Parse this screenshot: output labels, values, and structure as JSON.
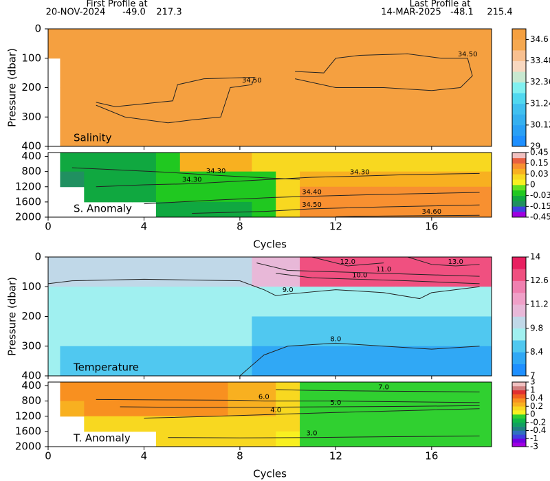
{
  "header": {
    "first": {
      "label": "First Profile at",
      "date": "20-NOV-2024",
      "lat": "-49.0",
      "lon": "217.3"
    },
    "last": {
      "label": "Last Profile at",
      "date": "14-MAR-2025",
      "lat": "-48.1",
      "lon": "215.4"
    }
  },
  "chart_data": [
    {
      "type": "heatmap",
      "title": "Salinity",
      "ylabel": "Pressure (dbar)",
      "y_inverted": true,
      "xlim": [
        0,
        18.5
      ],
      "xticks": [
        0,
        4,
        8,
        12,
        16
      ],
      "ylim": [
        0,
        400
      ],
      "yticks": [
        0,
        100,
        200,
        300,
        400
      ],
      "x_edges": [
        0,
        0.5,
        1.5,
        2.5,
        3.5,
        4.5,
        5.5,
        6.5,
        7.5,
        8.5,
        9.5,
        10.5,
        11.5,
        12.5,
        13.5,
        14.5,
        15.5,
        16.5,
        17.5,
        18.5
      ],
      "y_edges": [
        0,
        100,
        200,
        300,
        400
      ],
      "values": [
        [
          34.7,
          34.7,
          34.7,
          34.7,
          34.7,
          34.7,
          34.7,
          34.7,
          34.7,
          34.7,
          34.7,
          34.7,
          34.7,
          34.7,
          34.7,
          34.7,
          34.7,
          34.7,
          34.7
        ],
        [
          null,
          34.7,
          34.7,
          34.7,
          34.7,
          34.7,
          34.7,
          34.7,
          34.7,
          34.7,
          34.7,
          34.7,
          34.7,
          34.7,
          34.7,
          34.7,
          34.7,
          34.7,
          34.7
        ],
        [
          null,
          34.7,
          34.7,
          34.7,
          34.7,
          34.7,
          34.7,
          34.7,
          34.7,
          34.7,
          34.7,
          34.7,
          34.7,
          34.7,
          34.7,
          34.7,
          34.7,
          34.7,
          34.7
        ],
        [
          null,
          34.7,
          34.7,
          34.7,
          34.7,
          34.7,
          34.7,
          34.7,
          34.7,
          34.7,
          34.7,
          34.7,
          34.7,
          34.7,
          34.7,
          34.7,
          34.7,
          34.7,
          34.7
        ]
      ],
      "colorbar": {
        "edges": [
          29,
          29.56,
          30.12,
          30.68,
          31.24,
          31.8,
          32.36,
          32.92,
          33.48,
          34.04,
          34.6,
          35.16
        ],
        "colors": [
          "#1e8fff",
          "#2aa0f5",
          "#35b0f0",
          "#40c0f0",
          "#50d8f0",
          "#80f0f0",
          "#c8e8d0",
          "#f8d8c0",
          "#f8c090",
          "#f5a850",
          "#f5a040"
        ],
        "ticks": [
          29,
          30.12,
          31.24,
          32.36,
          33.48,
          34.6
        ]
      },
      "contours": [
        {
          "label": "34.50",
          "x": [
            2.0,
            2.8,
            4.0,
            5.2,
            5.4,
            6.5,
            8.6,
            8.5,
            7.6,
            7.2,
            6.0,
            5.0,
            3.2,
            2.0
          ],
          "y": [
            250,
            265,
            255,
            245,
            190,
            170,
            165,
            190,
            200,
            300,
            310,
            320,
            300,
            260
          ]
        },
        {
          "label": "34.50",
          "x": [
            10.3,
            11.5,
            12.0,
            13.0,
            15.0,
            16.4,
            17.5,
            17.7,
            17.2,
            16.0,
            14.0,
            12.0,
            10.3
          ],
          "y": [
            145,
            150,
            100,
            90,
            85,
            100,
            100,
            160,
            200,
            210,
            200,
            200,
            170
          ]
        }
      ]
    },
    {
      "type": "heatmap",
      "title": "S. Anomaly",
      "xlabel": "Cycles",
      "y_inverted": true,
      "xlim": [
        0,
        18.5
      ],
      "xticks": [
        0,
        4,
        8,
        12,
        16
      ],
      "ylim": [
        300,
        2000
      ],
      "yticks": [
        400,
        800,
        1200,
        1600,
        2000
      ],
      "x_edges": [
        0,
        0.5,
        1.5,
        2.5,
        3.5,
        4.5,
        5.5,
        6.5,
        7.5,
        8.5,
        9.5,
        10.5,
        11.5,
        12.5,
        13.5,
        14.5,
        15.5,
        16.5,
        17.5,
        18.5
      ],
      "y_edges": [
        300,
        800,
        1200,
        1600,
        2000
      ],
      "values": [
        [
          null,
          -0.05,
          -0.05,
          -0.05,
          -0.05,
          -0.02,
          0.05,
          0.05,
          0.05,
          0.02,
          0.02,
          0.02,
          0.02,
          0.02,
          0.02,
          0.02,
          0.02,
          0.02,
          0.02
        ],
        [
          null,
          -0.1,
          -0.05,
          -0.05,
          -0.05,
          -0.02,
          -0.02,
          -0.02,
          -0.02,
          -0.02,
          0.02,
          0.05,
          0.05,
          0.05,
          0.05,
          0.05,
          0.05,
          0.05,
          0.05
        ],
        [
          null,
          null,
          -0.05,
          -0.05,
          -0.05,
          -0.02,
          -0.02,
          -0.02,
          -0.02,
          -0.02,
          0.02,
          0.1,
          0.1,
          0.1,
          0.1,
          0.1,
          0.1,
          0.1,
          0.1
        ],
        [
          null,
          null,
          null,
          null,
          null,
          -0.05,
          -0.05,
          -0.05,
          -0.05,
          -0.02,
          0.02,
          0.1,
          0.1,
          0.1,
          0.1,
          0.1,
          0.1,
          0.1,
          0.1
        ]
      ],
      "colorbar": {
        "edges": [
          -0.45,
          -0.3,
          -0.15,
          -0.09,
          -0.03,
          -0.015,
          0,
          0.015,
          0.03,
          0.09,
          0.15,
          0.3,
          0.45
        ],
        "colors": [
          "#a000e0",
          "#4040e0",
          "#209060",
          "#10a840",
          "#20c820",
          "#60e020",
          "#f8f020",
          "#f8d820",
          "#f8b020",
          "#f89030",
          "#e86040",
          "#f0c0c0"
        ],
        "ticks": [
          -0.45,
          -0.15,
          -0.03,
          0,
          0.03,
          0.15,
          0.45
        ]
      },
      "contours": [
        {
          "label": "34.30",
          "x": [
            1,
            3,
            5,
            7,
            9.5,
            10.5
          ],
          "y": [
            700,
            760,
            820,
            900,
            980,
            1000
          ]
        },
        {
          "label": "34.30",
          "x": [
            2,
            4,
            6,
            8,
            9.5
          ],
          "y": [
            1200,
            1150,
            1120,
            1050,
            1000
          ]
        },
        {
          "label": "34.30",
          "x": [
            9.5,
            11,
            13,
            15,
            18
          ],
          "y": [
            1000,
            950,
            920,
            880,
            850
          ]
        },
        {
          "label": "34.40",
          "x": [
            4,
            7,
            9.5,
            11,
            14,
            18
          ],
          "y": [
            1650,
            1550,
            1480,
            1450,
            1400,
            1350
          ]
        },
        {
          "label": "34.50",
          "x": [
            6,
            9,
            11,
            14,
            18
          ],
          "y": [
            1900,
            1850,
            1780,
            1730,
            1680
          ]
        },
        {
          "label": "34.60",
          "x": [
            12,
            14,
            16,
            18
          ],
          "y": [
            1990,
            1970,
            1960,
            1950
          ]
        }
      ]
    },
    {
      "type": "heatmap",
      "title": "Temperature",
      "ylabel": "Pressure (dbar)",
      "y_inverted": true,
      "xlim": [
        0,
        18.5
      ],
      "xticks": [
        0,
        4,
        8,
        12,
        16
      ],
      "ylim": [
        0,
        400
      ],
      "yticks": [
        0,
        100,
        200,
        300,
        400
      ],
      "x_edges": [
        0,
        0.5,
        1.5,
        2.5,
        3.5,
        4.5,
        5.5,
        6.5,
        7.5,
        8.5,
        9.5,
        10.5,
        11.5,
        12.5,
        13.5,
        14.5,
        15.5,
        16.5,
        17.5,
        18.5
      ],
      "y_edges": [
        0,
        100,
        200,
        300,
        400
      ],
      "values": [
        [
          9.9,
          9.9,
          9.9,
          9.9,
          9.9,
          9.9,
          9.9,
          9.9,
          9.9,
          10.8,
          10.8,
          12.7,
          12.7,
          12.7,
          12.7,
          12.7,
          12.7,
          12.7,
          12.7
        ],
        [
          9.5,
          9.5,
          9.5,
          9.5,
          9.5,
          9.5,
          9.5,
          9.5,
          9.5,
          9.5,
          9.5,
          9.5,
          9.5,
          9.5,
          9.5,
          9.5,
          9.5,
          9.5,
          9.5
        ],
        [
          9.5,
          9.5,
          9.5,
          9.5,
          9.5,
          9.5,
          9.5,
          9.5,
          9.5,
          8.7,
          8.7,
          8.7,
          8.7,
          8.7,
          8.7,
          8.7,
          8.7,
          8.7,
          8.7
        ],
        [
          9.5,
          8.7,
          8.7,
          8.7,
          8.7,
          8.7,
          8.7,
          8.7,
          8.7,
          8.2,
          8.2,
          8.2,
          8.2,
          8.2,
          8.2,
          8.2,
          8.2,
          8.2,
          8.2
        ]
      ],
      "colorbar": {
        "edges": [
          7,
          7.7,
          8.4,
          9.1,
          9.8,
          10.5,
          11.2,
          11.9,
          12.6,
          13.3,
          14
        ],
        "colors": [
          "#1e8fff",
          "#30a8f5",
          "#50c8f0",
          "#a0f0f0",
          "#c0d8e8",
          "#e8b8d8",
          "#f0a0c8",
          "#f080b0",
          "#f05080",
          "#e82060"
        ],
        "ticks": [
          7,
          8.4,
          9.8,
          11.2,
          12.6,
          14
        ]
      },
      "contours": [
        {
          "label": "9.0",
          "x": [
            0,
            1,
            4,
            8,
            9,
            9.5,
            10,
            12,
            14,
            15.5,
            16,
            18
          ],
          "y": [
            90,
            80,
            75,
            80,
            110,
            130,
            125,
            110,
            120,
            140,
            120,
            100
          ]
        },
        {
          "label": "8.0",
          "x": [
            8,
            9,
            10,
            12,
            14,
            16,
            18
          ],
          "y": [
            400,
            330,
            300,
            290,
            300,
            310,
            300
          ]
        },
        {
          "label": "10.0",
          "x": [
            9.5,
            11,
            13,
            15,
            18
          ],
          "y": [
            55,
            70,
            75,
            80,
            90
          ]
        },
        {
          "label": "11.0",
          "x": [
            8.7,
            10,
            12,
            14,
            16,
            18
          ],
          "y": [
            20,
            45,
            50,
            55,
            60,
            65
          ]
        },
        {
          "label": "12.0",
          "x": [
            11,
            12.5,
            14
          ],
          "y": [
            0,
            30,
            20
          ]
        },
        {
          "label": "13.0",
          "x": [
            15,
            16,
            17,
            18
          ],
          "y": [
            0,
            25,
            30,
            25
          ]
        }
      ]
    },
    {
      "type": "heatmap",
      "title": "T. Anomaly",
      "xlabel": "Cycles",
      "y_inverted": true,
      "xlim": [
        0,
        18.5
      ],
      "xticks": [
        0,
        4,
        8,
        12,
        16
      ],
      "ylim": [
        300,
        2000
      ],
      "yticks": [
        400,
        800,
        1200,
        1600,
        2000
      ],
      "x_edges": [
        0,
        0.5,
        1.5,
        2.5,
        3.5,
        4.5,
        5.5,
        6.5,
        7.5,
        8.5,
        9.5,
        10.5,
        11.5,
        12.5,
        13.5,
        14.5,
        15.5,
        16.5,
        17.5,
        18.5
      ],
      "y_edges": [
        300,
        800,
        1200,
        1600,
        2000
      ],
      "values": [
        [
          null,
          0.35,
          0.35,
          0.35,
          0.35,
          0.35,
          0.35,
          0.35,
          0.25,
          0.25,
          0.15,
          -0.05,
          -0.05,
          -0.05,
          -0.05,
          -0.05,
          -0.05,
          -0.05,
          -0.05
        ],
        [
          null,
          0.25,
          0.35,
          0.35,
          0.35,
          0.35,
          0.35,
          0.35,
          0.25,
          0.25,
          0.15,
          -0.05,
          -0.05,
          -0.05,
          -0.05,
          -0.05,
          -0.05,
          -0.05,
          -0.05
        ],
        [
          null,
          null,
          0.15,
          0.15,
          0.15,
          0.15,
          0.15,
          0.15,
          0.15,
          0.15,
          0.15,
          -0.05,
          -0.05,
          -0.05,
          -0.05,
          -0.05,
          -0.05,
          -0.05,
          -0.05
        ],
        [
          null,
          null,
          null,
          null,
          null,
          0.15,
          0.15,
          0.15,
          0.15,
          0.15,
          0.05,
          -0.05,
          -0.05,
          -0.05,
          -0.05,
          -0.05,
          -0.05,
          -0.05,
          -0.05
        ]
      ],
      "colorbar": {
        "edges": [
          -3,
          -2,
          -1,
          -0.7,
          -0.4,
          -0.3,
          -0.2,
          -0.1,
          0,
          0.1,
          0.2,
          0.3,
          0.4,
          0.7,
          1,
          2,
          3
        ],
        "colors": [
          "#a000e0",
          "#7000e0",
          "#4040e0",
          "#3070c0",
          "#208080",
          "#10a060",
          "#10b848",
          "#30d030",
          "#f8f020",
          "#f8d820",
          "#f8b020",
          "#f89020",
          "#f06020",
          "#e03030",
          "#d08080",
          "#f0c0c0"
        ],
        "ticks": [
          -3,
          -1,
          -0.4,
          -0.2,
          0,
          0.2,
          0.4,
          1,
          3
        ]
      },
      "contours": [
        {
          "label": "7.0",
          "x": [
            9.5,
            11,
            14,
            18
          ],
          "y": [
            500,
            520,
            540,
            560
          ]
        },
        {
          "label": "6.0",
          "x": [
            2,
            5,
            8,
            9,
            12,
            15,
            18
          ],
          "y": [
            760,
            770,
            780,
            800,
            800,
            820,
            840
          ]
        },
        {
          "label": "5.0",
          "x": [
            3,
            6,
            9.5,
            12,
            15,
            18
          ],
          "y": [
            950,
            970,
            960,
            950,
            940,
            920
          ]
        },
        {
          "label": "4.0",
          "x": [
            4,
            7,
            9.5,
            12,
            18
          ],
          "y": [
            1250,
            1200,
            1150,
            1100,
            1000
          ]
        },
        {
          "label": "3.0",
          "x": [
            5,
            8,
            11,
            14,
            18
          ],
          "y": [
            1760,
            1770,
            1760,
            1740,
            1720
          ]
        }
      ]
    }
  ]
}
